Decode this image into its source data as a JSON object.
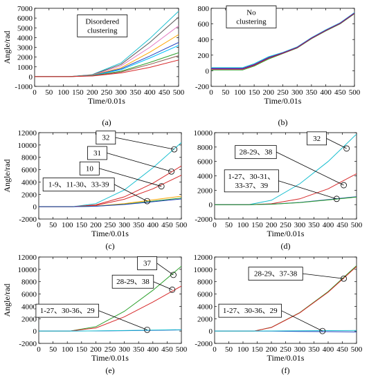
{
  "chart_data": [
    {
      "id": "a",
      "type": "line",
      "panel_label": "(a)",
      "xlabel": "Time/0.01s",
      "ylabel": "Angle/rad",
      "xlim": [
        0,
        500
      ],
      "ylim": [
        -1000,
        7000
      ],
      "xticks": [
        0,
        50,
        100,
        150,
        200,
        250,
        300,
        350,
        400,
        450,
        500
      ],
      "yticks": [
        -1000,
        0,
        1000,
        2000,
        3000,
        4000,
        5000,
        6000,
        7000
      ],
      "annotations": [
        {
          "text": "Disordered\nclustering",
          "at_data": [
            235,
            5200
          ],
          "target": null
        }
      ],
      "series": [
        {
          "color": "#17becf",
          "x": [
            0,
            120,
            200,
            300,
            400,
            500
          ],
          "y": [
            0,
            0,
            200,
            1400,
            3900,
            6700
          ]
        },
        {
          "color": "#555555",
          "x": [
            0,
            120,
            200,
            300,
            400,
            500
          ],
          "y": [
            0,
            0,
            180,
            1250,
            3500,
            6100
          ]
        },
        {
          "color": "#e377c2",
          "x": [
            0,
            120,
            200,
            300,
            400,
            500
          ],
          "y": [
            0,
            0,
            160,
            1100,
            3000,
            5200
          ]
        },
        {
          "color": "#ffa500",
          "x": [
            0,
            120,
            200,
            300,
            400,
            500
          ],
          "y": [
            0,
            0,
            140,
            900,
            2500,
            4300
          ]
        },
        {
          "color": "#1f3fbf",
          "x": [
            0,
            120,
            200,
            300,
            400,
            500
          ],
          "y": [
            0,
            0,
            120,
            800,
            2100,
            3500
          ]
        },
        {
          "color": "#00bfff",
          "x": [
            0,
            120,
            200,
            300,
            400,
            500
          ],
          "y": [
            0,
            0,
            110,
            700,
            1900,
            3200
          ]
        },
        {
          "color": "#2ca02c",
          "x": [
            0,
            120,
            200,
            300,
            400,
            500
          ],
          "y": [
            0,
            0,
            90,
            550,
            1450,
            2450
          ]
        },
        {
          "color": "#8c564b",
          "x": [
            0,
            120,
            200,
            300,
            400,
            500
          ],
          "y": [
            0,
            0,
            80,
            480,
            1250,
            2150
          ]
        },
        {
          "color": "#d62728",
          "x": [
            0,
            120,
            200,
            300,
            400,
            500
          ],
          "y": [
            0,
            0,
            60,
            370,
            950,
            1700
          ]
        }
      ]
    },
    {
      "id": "b",
      "type": "line",
      "panel_label": "(b)",
      "xlabel": "Time/0.01s",
      "ylabel": "",
      "xlim": [
        0,
        500
      ],
      "ylim": [
        -200,
        800
      ],
      "xticks": [
        0,
        50,
        100,
        150,
        200,
        250,
        300,
        350,
        400,
        450,
        500
      ],
      "yticks": [
        -200,
        0,
        200,
        400,
        600,
        800
      ],
      "annotations": [
        {
          "text": "No\nclustering",
          "at_data": [
            140,
            690
          ],
          "target": null
        }
      ],
      "series": [
        {
          "color": "#1f3fbf",
          "x": [
            0,
            110,
            150,
            200,
            250,
            300,
            350,
            400,
            450,
            500
          ],
          "y": [
            30,
            30,
            80,
            170,
            230,
            300,
            420,
            520,
            610,
            740
          ]
        },
        {
          "color": "#2ca02c",
          "x": [
            0,
            110,
            150,
            200,
            250,
            300,
            350,
            400,
            450,
            500
          ],
          "y": [
            10,
            10,
            60,
            150,
            220,
            290,
            410,
            510,
            600,
            730
          ]
        },
        {
          "color": "#d62728",
          "x": [
            0,
            110,
            150,
            200,
            250,
            300,
            350,
            400,
            450,
            500
          ],
          "y": [
            20,
            20,
            70,
            160,
            225,
            295,
            415,
            515,
            605,
            735
          ]
        },
        {
          "color": "#17becf",
          "x": [
            0,
            110,
            150,
            200,
            250,
            300,
            350,
            400,
            450,
            500
          ],
          "y": [
            40,
            40,
            90,
            180,
            235,
            305,
            425,
            525,
            615,
            745
          ]
        },
        {
          "color": "#8b008b",
          "x": [
            0,
            110,
            150,
            200,
            250,
            300,
            350,
            400,
            450,
            500
          ],
          "y": [
            25,
            25,
            75,
            165,
            228,
            298,
            418,
            518,
            608,
            738
          ]
        }
      ]
    },
    {
      "id": "c",
      "type": "line",
      "panel_label": "(c)",
      "xlabel": "Time/0.01s",
      "ylabel": "Angle/rad",
      "xlim": [
        0,
        500
      ],
      "ylim": [
        -2000,
        12000
      ],
      "xticks": [
        0,
        50,
        100,
        150,
        200,
        250,
        300,
        350,
        400,
        450,
        500
      ],
      "yticks": [
        -2000,
        0,
        2000,
        4000,
        6000,
        8000,
        10000,
        12000
      ],
      "annotations": [
        {
          "text": "32",
          "at_data": [
            235,
            11200
          ],
          "target": [
            475,
            9300
          ]
        },
        {
          "text": "31",
          "at_data": [
            205,
            8700
          ],
          "target": [
            465,
            5700
          ]
        },
        {
          "text": "10",
          "at_data": [
            178,
            6200
          ],
          "target": [
            430,
            3300
          ]
        },
        {
          "text": "1-9、11-30、33-39",
          "at_data": [
            140,
            3600
          ],
          "target": [
            380,
            900
          ]
        }
      ],
      "series": [
        {
          "color": "#17becf",
          "x": [
            0,
            120,
            200,
            300,
            400,
            500
          ],
          "y": [
            0,
            0,
            500,
            2700,
            6300,
            10400
          ]
        },
        {
          "color": "#d62728",
          "x": [
            0,
            120,
            200,
            300,
            400,
            500
          ],
          "y": [
            0,
            0,
            300,
            1600,
            3800,
            6600
          ]
        },
        {
          "color": "#d62728",
          "x": [
            0,
            120,
            200,
            300,
            400,
            500
          ],
          "y": [
            0,
            0,
            220,
            1200,
            2900,
            5100
          ]
        },
        {
          "color": "#ffa500",
          "x": [
            0,
            120,
            200,
            300,
            400,
            500
          ],
          "y": [
            0,
            0,
            100,
            500,
            1100,
            1700
          ]
        },
        {
          "color": "#2ca02c",
          "x": [
            0,
            120,
            200,
            300,
            400,
            500
          ],
          "y": [
            0,
            0,
            80,
            400,
            900,
            1400
          ]
        },
        {
          "color": "#1f3fbf",
          "x": [
            0,
            120,
            200,
            300,
            400,
            500
          ],
          "y": [
            0,
            0,
            70,
            350,
            800,
            1250
          ]
        }
      ]
    },
    {
      "id": "d",
      "type": "line",
      "panel_label": "(d)",
      "xlabel": "Time/0.01s",
      "ylabel": "",
      "xlim": [
        0,
        500
      ],
      "ylim": [
        -2000,
        10000
      ],
      "xticks": [
        0,
        50,
        100,
        150,
        200,
        250,
        300,
        350,
        400,
        450,
        500
      ],
      "yticks": [
        -2000,
        0,
        2000,
        4000,
        6000,
        8000,
        10000
      ],
      "annotations": [
        {
          "text": "32",
          "at_data": [
            360,
            9200
          ],
          "target": [
            465,
            7800
          ]
        },
        {
          "text": "28-29、38",
          "at_data": [
            145,
            7300
          ],
          "target": [
            455,
            2700
          ]
        },
        {
          "text": "1-27、30-31、\n33-37、39",
          "at_data": [
            130,
            3300
          ],
          "target": [
            430,
            800
          ]
        }
      ],
      "series": [
        {
          "color": "#17becf",
          "x": [
            0,
            120,
            200,
            300,
            400,
            500
          ],
          "y": [
            0,
            0,
            600,
            2900,
            6000,
            9800
          ]
        },
        {
          "color": "#d62728",
          "x": [
            0,
            120,
            200,
            300,
            400,
            500
          ],
          "y": [
            0,
            0,
            120,
            800,
            2200,
            4300
          ]
        },
        {
          "color": "#1f3fbf",
          "x": [
            0,
            120,
            200,
            300,
            400,
            500
          ],
          "y": [
            0,
            0,
            60,
            300,
            700,
            1100
          ]
        },
        {
          "color": "#2ca02c",
          "x": [
            0,
            120,
            200,
            300,
            400,
            500
          ],
          "y": [
            0,
            0,
            55,
            280,
            650,
            1050
          ]
        }
      ]
    },
    {
      "id": "e",
      "type": "line",
      "panel_label": "(e)",
      "xlabel": "Time/0.01s",
      "ylabel": "Angle/rad",
      "xlim": [
        0,
        500
      ],
      "ylim": [
        -2000,
        12000
      ],
      "xticks": [
        0,
        50,
        100,
        150,
        200,
        250,
        300,
        350,
        400,
        450,
        500
      ],
      "yticks": [
        -2000,
        0,
        2000,
        4000,
        6000,
        8000,
        10000,
        12000
      ],
      "annotations": [
        {
          "text": "37",
          "at_data": [
            380,
            11000
          ],
          "target": [
            472,
            9100
          ]
        },
        {
          "text": "28-29、38",
          "at_data": [
            330,
            8000
          ],
          "target": [
            468,
            6700
          ]
        },
        {
          "text": "1-27、30-36、29",
          "at_data": [
            100,
            3300
          ],
          "target": [
            380,
            200
          ]
        }
      ],
      "series": [
        {
          "color": "#2ca02c",
          "x": [
            0,
            110,
            200,
            300,
            400,
            500
          ],
          "y": [
            0,
            0,
            700,
            3200,
            6600,
            10500
          ]
        },
        {
          "color": "#d62728",
          "x": [
            0,
            110,
            200,
            300,
            400,
            500
          ],
          "y": [
            0,
            0,
            500,
            2300,
            4700,
            7300
          ]
        },
        {
          "color": "#1f3fbf",
          "x": [
            0,
            110,
            200,
            300,
            400,
            500
          ],
          "y": [
            0,
            0,
            20,
            60,
            120,
            180
          ]
        },
        {
          "color": "#17becf",
          "x": [
            0,
            110,
            200,
            300,
            400,
            500
          ],
          "y": [
            0,
            0,
            30,
            80,
            150,
            220
          ]
        }
      ]
    },
    {
      "id": "f",
      "type": "line",
      "panel_label": "(f)",
      "xlabel": "Time/0.01s",
      "ylabel": "",
      "xlim": [
        0,
        500
      ],
      "ylim": [
        -2000,
        12000
      ],
      "xticks": [
        0,
        50,
        100,
        150,
        200,
        250,
        300,
        350,
        400,
        450,
        500
      ],
      "yticks": [
        -2000,
        0,
        2000,
        4000,
        6000,
        8000,
        10000,
        12000
      ],
      "annotations": [
        {
          "text": "28-29、37-38",
          "at_data": [
            215,
            9300
          ],
          "target": [
            455,
            8500
          ]
        },
        {
          "text": "1-27、30-36、29",
          "at_data": [
            125,
            3300
          ],
          "target": [
            380,
            0
          ]
        }
      ],
      "series": [
        {
          "color": "#2ca02c",
          "x": [
            0,
            140,
            200,
            300,
            400,
            500
          ],
          "y": [
            0,
            0,
            600,
            3000,
            6400,
            10600
          ]
        },
        {
          "color": "#d62728",
          "x": [
            0,
            140,
            200,
            300,
            400,
            500
          ],
          "y": [
            0,
            0,
            580,
            2950,
            6300,
            10450
          ]
        },
        {
          "color": "#1f3fbf",
          "x": [
            0,
            140,
            200,
            300,
            400,
            500
          ],
          "y": [
            0,
            0,
            -20,
            -60,
            -100,
            -150
          ]
        },
        {
          "color": "#17becf",
          "x": [
            0,
            140,
            200,
            300,
            400,
            500
          ],
          "y": [
            0,
            0,
            20,
            40,
            70,
            100
          ]
        }
      ]
    }
  ]
}
